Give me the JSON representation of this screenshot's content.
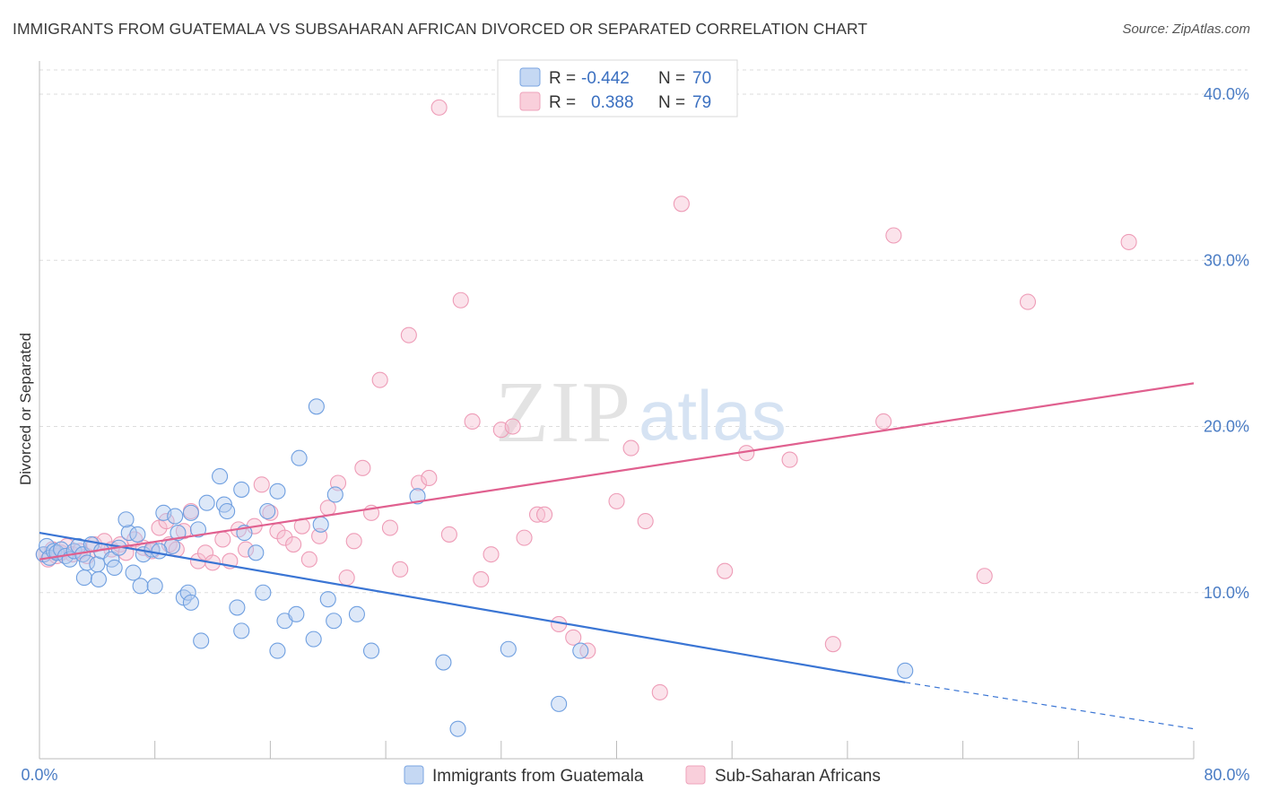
{
  "title": "IMMIGRANTS FROM GUATEMALA VS SUBSAHARAN AFRICAN DIVORCED OR SEPARATED CORRELATION CHART",
  "source": "Source: ZipAtlas.com",
  "watermark": {
    "zip": "ZIP",
    "atlas": "atlas"
  },
  "legend_box": {
    "rows": [
      {
        "r_label": "R =",
        "r_value": "-0.442",
        "n_label": "N =",
        "n_value": "70"
      },
      {
        "r_label": "R =",
        "r_value": "0.388",
        "n_label": "N =",
        "n_value": "79"
      }
    ]
  },
  "chart_data": {
    "type": "scatter",
    "xlabel": "",
    "ylabel": "Divorced or Separated",
    "xlim": [
      0,
      80
    ],
    "ylim": [
      0,
      42
    ],
    "x_tick_labels": [
      "0.0%",
      "80.0%"
    ],
    "y_ticks": [
      10,
      20,
      30,
      40
    ],
    "y_tick_labels": [
      "10.0%",
      "20.0%",
      "30.0%",
      "40.0%"
    ],
    "grid": true,
    "colors": {
      "blue": "#6f9fe0",
      "blue_line": "#3a75d4",
      "pink": "#f0a0ba",
      "pink_line": "#e0608f"
    },
    "series": [
      {
        "name": "Immigrants from Guatemala",
        "color": "#6f9fe0",
        "trend": {
          "x0": 0,
          "y0": 13.6,
          "x1": 60,
          "y1": 4.6,
          "dash_to_x": 80,
          "dash_to_y": 1.8
        },
        "points": [
          [
            0.3,
            12.3
          ],
          [
            0.5,
            12.8
          ],
          [
            0.7,
            12.1
          ],
          [
            1.0,
            12.5
          ],
          [
            1.2,
            12.4
          ],
          [
            1.5,
            12.6
          ],
          [
            1.8,
            12.2
          ],
          [
            2.1,
            12.0
          ],
          [
            2.4,
            12.5
          ],
          [
            2.7,
            12.8
          ],
          [
            3.0,
            12.3
          ],
          [
            3.3,
            11.8
          ],
          [
            3.6,
            12.9
          ],
          [
            4.0,
            11.7
          ],
          [
            4.3,
            12.5
          ],
          [
            3.1,
            10.9
          ],
          [
            4.1,
            10.8
          ],
          [
            5.0,
            12.0
          ],
          [
            5.5,
            12.7
          ],
          [
            6.2,
            13.6
          ],
          [
            6.8,
            13.5
          ],
          [
            7.2,
            12.3
          ],
          [
            7.8,
            12.6
          ],
          [
            6.5,
            11.2
          ],
          [
            7.0,
            10.4
          ],
          [
            8.0,
            10.4
          ],
          [
            9.2,
            12.8
          ],
          [
            8.6,
            14.8
          ],
          [
            9.4,
            14.6
          ],
          [
            10.5,
            14.8
          ],
          [
            11.6,
            15.4
          ],
          [
            12.8,
            15.3
          ],
          [
            11.0,
            13.8
          ],
          [
            13.0,
            14.9
          ],
          [
            14.2,
            13.6
          ],
          [
            15.0,
            12.4
          ],
          [
            15.8,
            14.9
          ],
          [
            14.0,
            16.2
          ],
          [
            16.5,
            16.1
          ],
          [
            13.7,
            9.1
          ],
          [
            10.0,
            9.7
          ],
          [
            10.3,
            10.0
          ],
          [
            10.5,
            9.4
          ],
          [
            11.2,
            7.1
          ],
          [
            12.5,
            17.0
          ],
          [
            14.0,
            7.7
          ],
          [
            15.5,
            10.0
          ],
          [
            16.5,
            6.5
          ],
          [
            17.0,
            8.3
          ],
          [
            17.8,
            8.7
          ],
          [
            19.0,
            7.2
          ],
          [
            19.5,
            14.1
          ],
          [
            20.0,
            9.6
          ],
          [
            20.4,
            8.3
          ],
          [
            22.0,
            8.7
          ],
          [
            23.0,
            6.5
          ],
          [
            26.2,
            15.8
          ],
          [
            18.0,
            18.1
          ],
          [
            19.2,
            21.2
          ],
          [
            20.5,
            15.9
          ],
          [
            28.0,
            5.8
          ],
          [
            29.0,
            1.8
          ],
          [
            32.5,
            6.6
          ],
          [
            36.0,
            3.3
          ],
          [
            37.5,
            6.5
          ],
          [
            60.0,
            5.3
          ],
          [
            6.0,
            14.4
          ],
          [
            8.3,
            12.5
          ],
          [
            9.6,
            13.6
          ],
          [
            5.2,
            11.5
          ]
        ]
      },
      {
        "name": "Sub-Saharan Africans",
        "color": "#f0a0ba",
        "trend": {
          "x0": 0,
          "y0": 12.0,
          "x1": 80,
          "y1": 22.6
        },
        "points": [
          [
            0.3,
            12.3
          ],
          [
            0.6,
            12.0
          ],
          [
            0.9,
            12.6
          ],
          [
            1.2,
            12.2
          ],
          [
            1.5,
            12.4
          ],
          [
            1.9,
            12.8
          ],
          [
            2.3,
            12.3
          ],
          [
            2.8,
            12.5
          ],
          [
            3.3,
            12.2
          ],
          [
            3.8,
            12.9
          ],
          [
            4.5,
            13.1
          ],
          [
            5.0,
            12.6
          ],
          [
            5.6,
            12.9
          ],
          [
            6.0,
            12.4
          ],
          [
            6.6,
            13.2
          ],
          [
            7.2,
            12.7
          ],
          [
            7.8,
            12.5
          ],
          [
            8.3,
            13.9
          ],
          [
            8.8,
            14.3
          ],
          [
            9.0,
            12.9
          ],
          [
            9.5,
            12.6
          ],
          [
            10.0,
            13.7
          ],
          [
            10.5,
            14.9
          ],
          [
            11.0,
            11.9
          ],
          [
            11.5,
            12.4
          ],
          [
            12.0,
            11.8
          ],
          [
            12.7,
            13.2
          ],
          [
            13.2,
            11.9
          ],
          [
            13.8,
            13.8
          ],
          [
            14.3,
            12.6
          ],
          [
            14.9,
            14.0
          ],
          [
            15.4,
            16.5
          ],
          [
            16.0,
            14.8
          ],
          [
            16.5,
            13.7
          ],
          [
            17.0,
            13.3
          ],
          [
            17.6,
            12.9
          ],
          [
            18.2,
            14.0
          ],
          [
            18.7,
            12.0
          ],
          [
            19.4,
            13.4
          ],
          [
            20.0,
            15.1
          ],
          [
            20.7,
            16.6
          ],
          [
            21.3,
            10.9
          ],
          [
            21.8,
            13.1
          ],
          [
            22.4,
            17.5
          ],
          [
            23.0,
            14.8
          ],
          [
            23.6,
            22.8
          ],
          [
            24.3,
            13.9
          ],
          [
            25.0,
            11.4
          ],
          [
            25.6,
            25.5
          ],
          [
            26.3,
            16.6
          ],
          [
            27.0,
            16.9
          ],
          [
            27.7,
            39.2
          ],
          [
            28.4,
            13.5
          ],
          [
            29.2,
            27.6
          ],
          [
            30.0,
            20.3
          ],
          [
            30.6,
            10.8
          ],
          [
            31.3,
            12.3
          ],
          [
            32.0,
            19.8
          ],
          [
            32.8,
            20.0
          ],
          [
            33.6,
            13.3
          ],
          [
            34.5,
            14.7
          ],
          [
            35.0,
            14.7
          ],
          [
            36.0,
            8.1
          ],
          [
            37.0,
            7.3
          ],
          [
            38.0,
            6.5
          ],
          [
            40.0,
            15.5
          ],
          [
            41.0,
            18.7
          ],
          [
            42.0,
            14.3
          ],
          [
            43.0,
            4.0
          ],
          [
            44.5,
            33.4
          ],
          [
            47.5,
            11.3
          ],
          [
            49.0,
            18.4
          ],
          [
            52.0,
            18.0
          ],
          [
            55.0,
            6.9
          ],
          [
            58.5,
            20.3
          ],
          [
            59.2,
            31.5
          ],
          [
            65.5,
            11.0
          ],
          [
            68.5,
            27.5
          ],
          [
            75.5,
            31.1
          ]
        ]
      }
    ]
  },
  "bottom_legend": [
    {
      "label": "Immigrants from Guatemala",
      "color": "#6f9fe0"
    },
    {
      "label": "Sub-Saharan Africans",
      "color": "#f0a0ba"
    }
  ]
}
